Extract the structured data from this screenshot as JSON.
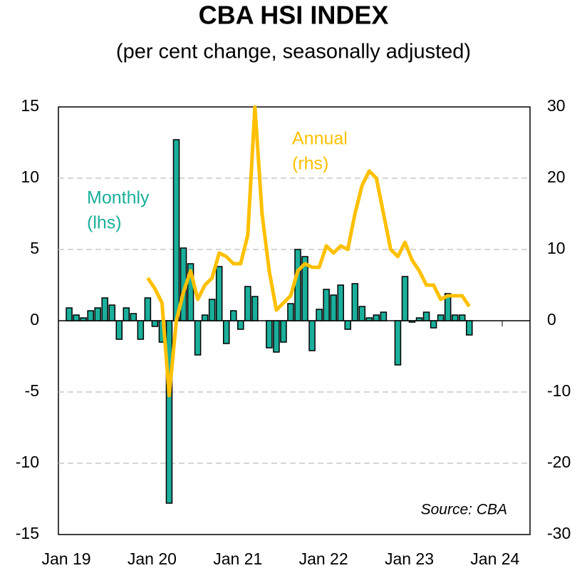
{
  "chart_data": {
    "type": "bar-line",
    "title": "CBA HSI INDEX",
    "subtitle": "(per cent change, seasonally adjusted)",
    "categories": [
      "Jan 19",
      null,
      null,
      null,
      null,
      null,
      null,
      null,
      null,
      null,
      null,
      null,
      "Jan 20",
      null,
      null,
      null,
      null,
      null,
      null,
      null,
      null,
      null,
      null,
      null,
      "Jan 21",
      null,
      null,
      null,
      null,
      null,
      null,
      null,
      null,
      null,
      null,
      null,
      "Jan 22",
      null,
      null,
      null,
      null,
      null,
      null,
      null,
      null,
      null,
      null,
      null,
      "Jan 23",
      null,
      null,
      null,
      null,
      null,
      null,
      null,
      null,
      null,
      null,
      null,
      "Jan 24",
      null,
      null,
      null,
      null,
      null
    ],
    "series": [
      {
        "name": "Monthly",
        "color": "#1aaf9b",
        "type": "bar",
        "axis": "y",
        "values": [
          null,
          0.9,
          0.4,
          0.2,
          0.7,
          0.9,
          1.6,
          1.1,
          -1.3,
          0.9,
          0.5,
          -1.3,
          1.6,
          -0.4,
          -1.5,
          -12.8,
          12.7,
          5.1,
          4.0,
          -2.4,
          0.4,
          1.5,
          3.8,
          -1.6,
          0.7,
          -0.6,
          2.4,
          1.7,
          0.0,
          -1.9,
          -2.2,
          -1.5,
          1.2,
          5.0,
          4.5,
          -2.1,
          0.8,
          2.2,
          1.8,
          2.5,
          -0.6,
          2.6,
          1.0,
          0.2,
          0.4,
          0.6,
          0.0,
          -3.1,
          3.1,
          -0.1,
          0.2,
          0.6,
          -0.5,
          0.4,
          1.9,
          0.4,
          0.4,
          -1.0,
          null,
          null,
          null,
          null,
          null,
          null,
          null,
          null
        ]
      },
      {
        "name": "Annual",
        "color": "#ffc000",
        "type": "line",
        "axis": "y2",
        "values": [
          null,
          null,
          null,
          null,
          null,
          null,
          null,
          null,
          null,
          null,
          null,
          null,
          6,
          4.5,
          2.5,
          -10.5,
          0,
          4,
          7,
          3,
          5,
          6,
          9.5,
          9,
          8,
          8,
          12,
          30,
          15,
          7,
          1.5,
          2.5,
          3.5,
          7,
          8,
          7.5,
          7.5,
          10.5,
          9.5,
          10.5,
          10,
          15,
          19,
          21,
          20,
          15,
          10,
          9,
          11,
          8.5,
          7,
          5,
          5,
          3,
          3.5,
          3.5,
          3.5,
          2,
          null,
          null,
          null,
          null,
          null,
          null,
          null,
          null
        ]
      }
    ],
    "annotations": [
      "(lhs)",
      "(rhs)",
      "Source: CBA"
    ],
    "ylim": [
      -15,
      15
    ],
    "yticks": [
      -15,
      -10,
      -5,
      0,
      5,
      10,
      15
    ],
    "y2lim": [
      -30,
      30
    ],
    "y2ticks": [
      -30,
      -20,
      -10,
      0,
      10,
      20,
      30
    ],
    "grid": true
  }
}
